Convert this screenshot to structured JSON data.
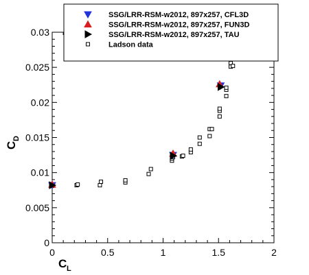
{
  "chart_data": {
    "type": "scatter",
    "title": "",
    "xlabel": "C",
    "xlabel_sub": "L",
    "ylabel": "C",
    "ylabel_sub": "D",
    "xlim": [
      0,
      2
    ],
    "ylim": [
      0,
      0.03
    ],
    "xticks": [
      "0",
      "0.5",
      "1",
      "1.5",
      "2"
    ],
    "yticks": [
      "0",
      "0.005",
      "0.01",
      "0.015",
      "0.02",
      "0.025",
      "0.03"
    ],
    "grid": false,
    "legend_position": "top",
    "series": [
      {
        "name": "SSG/LRR-RSM-w2012, 897x257, CFL3D",
        "marker": "triangle-down",
        "color": "#2233dd",
        "points": [
          [
            0.0,
            0.0082
          ],
          [
            1.09,
            0.0125
          ],
          [
            1.52,
            0.0224
          ]
        ]
      },
      {
        "name": "SSG/LRR-RSM-w2012, 897x257, FUN3D",
        "marker": "triangle-up",
        "color": "#d81e1e",
        "points": [
          [
            0.0,
            0.0083
          ],
          [
            1.09,
            0.0127
          ],
          [
            1.51,
            0.0226
          ]
        ]
      },
      {
        "name": "SSG/LRR-RSM-w2012, 897x257, TAU",
        "marker": "triangle-right",
        "color": "#000000",
        "points": [
          [
            0.0,
            0.0082
          ],
          [
            1.09,
            0.0124
          ],
          [
            1.52,
            0.0222
          ]
        ]
      },
      {
        "name": "Ladson data",
        "marker": "square-open",
        "color": "#000000",
        "points": [
          [
            0.0,
            0.0081
          ],
          [
            0.22,
            0.0082
          ],
          [
            0.23,
            0.0083
          ],
          [
            0.43,
            0.0082
          ],
          [
            0.44,
            0.0087
          ],
          [
            0.66,
            0.0086
          ],
          [
            0.66,
            0.0089
          ],
          [
            0.87,
            0.0098
          ],
          [
            0.89,
            0.0105
          ],
          [
            1.08,
            0.0117
          ],
          [
            1.08,
            0.012
          ],
          [
            1.09,
            0.0122
          ],
          [
            1.17,
            0.0123
          ],
          [
            1.18,
            0.0124
          ],
          [
            1.25,
            0.0129
          ],
          [
            1.25,
            0.0133
          ],
          [
            1.33,
            0.0141
          ],
          [
            1.33,
            0.015
          ],
          [
            1.42,
            0.0152
          ],
          [
            1.42,
            0.0162
          ],
          [
            1.44,
            0.0162
          ],
          [
            1.51,
            0.018
          ],
          [
            1.51,
            0.0188
          ],
          [
            1.51,
            0.0191
          ],
          [
            1.57,
            0.0209
          ],
          [
            1.57,
            0.0218
          ],
          [
            1.57,
            0.0221
          ],
          [
            1.61,
            0.0251
          ],
          [
            1.61,
            0.0256
          ],
          [
            1.63,
            0.0252
          ]
        ]
      }
    ]
  }
}
